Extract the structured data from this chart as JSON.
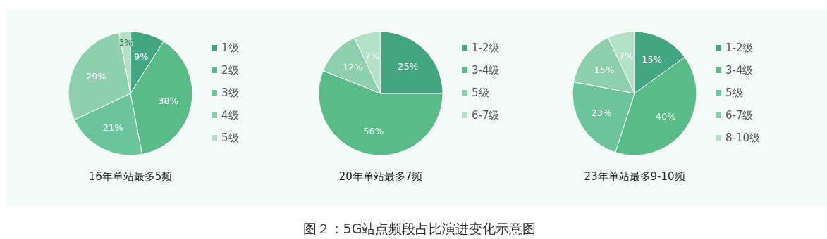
{
  "chart_data": [
    {
      "type": "pie",
      "title": "16年单站最多5频",
      "categories": [
        "1级",
        "2级",
        "3级",
        "4级",
        "5级"
      ],
      "values": [
        9,
        38,
        21,
        29,
        3
      ],
      "value_labels": [
        "9%",
        "38%",
        "21%",
        "29%",
        "3%"
      ],
      "colors": [
        "#43a683",
        "#58bb88",
        "#6cc49c",
        "#8ecfae",
        "#b4e0c8"
      ],
      "legend": "right",
      "annotations": [
        "图２：5G站点频段占比演进变化示意图"
      ]
    },
    {
      "type": "pie",
      "title": "20年单站最多7频",
      "categories": [
        "1-2级",
        "3-4级",
        "5级",
        "6-7级"
      ],
      "values": [
        25,
        56,
        12,
        7
      ],
      "value_labels": [
        "25%",
        "56%",
        "12%",
        "7%"
      ],
      "colors": [
        "#43a683",
        "#58bb88",
        "#8ecfae",
        "#b4e0c8"
      ],
      "legend": "right"
    },
    {
      "type": "pie",
      "title": "23年单站最多9-10频",
      "categories": [
        "1-2级",
        "3-4级",
        "5级",
        "6-7级",
        "8-10级"
      ],
      "values": [
        15,
        40,
        23,
        15,
        7
      ],
      "value_labels": [
        "15%",
        "40%",
        "23%",
        "15%",
        "7%"
      ],
      "colors": [
        "#43a683",
        "#58bb88",
        "#6cc49c",
        "#8ecfae",
        "#b4e0c8"
      ],
      "legend": "right"
    }
  ]
}
